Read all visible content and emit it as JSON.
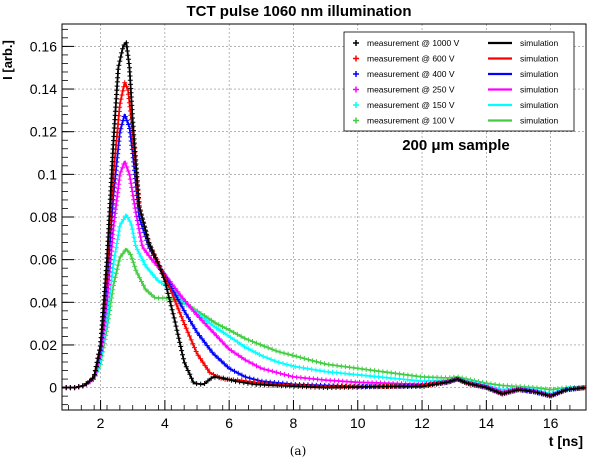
{
  "caption": "(a)",
  "chart_data": {
    "type": "line",
    "title": "TCT pulse 1060 nm illumination",
    "xlabel": "t [ns]",
    "ylabel": "I [arb.]",
    "annotation": "200 μm sample",
    "xlim": [
      0.8,
      17.1
    ],
    "ylim": [
      -0.0105,
      0.1705
    ],
    "x_ticks": [
      2,
      4,
      6,
      8,
      10,
      12,
      14,
      16
    ],
    "y_ticks": [
      0,
      0.02,
      0.04,
      0.06,
      0.08,
      0.1,
      0.12,
      0.14,
      0.16
    ],
    "grid": true,
    "legend_position": "top-right",
    "legend_columns": [
      "measurement",
      "simulation"
    ],
    "series": [
      {
        "name": "measurement @ 1000 V",
        "simulation_label": "simulation",
        "color": "#000000",
        "points": [
          [
            0.8,
            0
          ],
          [
            1.2,
            0
          ],
          [
            1.5,
            0.001
          ],
          [
            1.8,
            0.005
          ],
          [
            2.0,
            0.02
          ],
          [
            2.2,
            0.06
          ],
          [
            2.4,
            0.115
          ],
          [
            2.55,
            0.15
          ],
          [
            2.7,
            0.16
          ],
          [
            2.8,
            0.162
          ],
          [
            2.9,
            0.15
          ],
          [
            3.0,
            0.125
          ],
          [
            3.2,
            0.085
          ],
          [
            3.5,
            0.068
          ],
          [
            3.8,
            0.058
          ],
          [
            4.0,
            0.05
          ],
          [
            4.3,
            0.032
          ],
          [
            4.6,
            0.012
          ],
          [
            4.9,
            0.002
          ],
          [
            5.2,
            0.0015
          ],
          [
            5.5,
            0.005
          ],
          [
            5.8,
            0.0045
          ],
          [
            6.2,
            0.003
          ],
          [
            6.8,
            0.0015
          ],
          [
            7.5,
            0.001
          ],
          [
            9,
            0
          ],
          [
            11,
            0.0005
          ],
          [
            12,
            0.0005
          ],
          [
            12.8,
            0.0025
          ],
          [
            13.1,
            0.004
          ],
          [
            13.4,
            0.002
          ],
          [
            14,
            0
          ],
          [
            14.5,
            -0.003
          ],
          [
            15,
            -0.001
          ],
          [
            15.5,
            -0.002
          ],
          [
            16,
            -0.004
          ],
          [
            16.5,
            -0.001
          ],
          [
            17.1,
            0
          ]
        ]
      },
      {
        "name": "measurement @ 600 V",
        "simulation_label": "simulation",
        "color": "#ff0000",
        "points": [
          [
            0.8,
            0
          ],
          [
            1.2,
            0
          ],
          [
            1.5,
            0.001
          ],
          [
            1.8,
            0.005
          ],
          [
            2.0,
            0.02
          ],
          [
            2.2,
            0.055
          ],
          [
            2.4,
            0.1
          ],
          [
            2.6,
            0.133
          ],
          [
            2.75,
            0.143
          ],
          [
            2.85,
            0.14
          ],
          [
            3.0,
            0.12
          ],
          [
            3.2,
            0.085
          ],
          [
            3.5,
            0.068
          ],
          [
            3.8,
            0.058
          ],
          [
            4.2,
            0.045
          ],
          [
            4.6,
            0.03
          ],
          [
            5.0,
            0.016
          ],
          [
            5.4,
            0.007
          ],
          [
            5.8,
            0.004
          ],
          [
            6.3,
            0.0035
          ],
          [
            7.0,
            0.002
          ],
          [
            8,
            0.001
          ],
          [
            9,
            0.0005
          ],
          [
            11,
            0.0005
          ],
          [
            12,
            0.001
          ],
          [
            12.8,
            0.0025
          ],
          [
            13.1,
            0.004
          ],
          [
            13.4,
            0.002
          ],
          [
            14,
            0
          ],
          [
            14.5,
            -0.003
          ],
          [
            15,
            -0.001
          ],
          [
            15.5,
            -0.002
          ],
          [
            16,
            -0.004
          ],
          [
            16.5,
            -0.001
          ],
          [
            17.1,
            0
          ]
        ]
      },
      {
        "name": "measurement @ 400 V",
        "simulation_label": "simulation",
        "color": "#0000ff",
        "points": [
          [
            0.8,
            0
          ],
          [
            1.2,
            0
          ],
          [
            1.5,
            0.001
          ],
          [
            1.8,
            0.005
          ],
          [
            2.0,
            0.018
          ],
          [
            2.2,
            0.05
          ],
          [
            2.4,
            0.09
          ],
          [
            2.6,
            0.12
          ],
          [
            2.75,
            0.128
          ],
          [
            2.9,
            0.122
          ],
          [
            3.0,
            0.11
          ],
          [
            3.2,
            0.08
          ],
          [
            3.5,
            0.066
          ],
          [
            3.8,
            0.058
          ],
          [
            4.2,
            0.047
          ],
          [
            4.6,
            0.036
          ],
          [
            5.0,
            0.026
          ],
          [
            5.5,
            0.016
          ],
          [
            6.0,
            0.009
          ],
          [
            6.5,
            0.005
          ],
          [
            7.0,
            0.003
          ],
          [
            8,
            0.0015
          ],
          [
            9,
            0.001
          ],
          [
            10,
            0.0005
          ],
          [
            11,
            0.0005
          ],
          [
            12,
            0.001
          ],
          [
            12.8,
            0.0025
          ],
          [
            13.1,
            0.004
          ],
          [
            13.4,
            0.002
          ],
          [
            14,
            0
          ],
          [
            14.5,
            -0.003
          ],
          [
            15,
            -0.001
          ],
          [
            15.5,
            -0.002
          ],
          [
            16,
            -0.004
          ],
          [
            16.5,
            -0.001
          ],
          [
            17.1,
            0
          ]
        ]
      },
      {
        "name": "measurement @ 250 V",
        "simulation_label": "simulation",
        "color": "#ff00ff",
        "points": [
          [
            0.8,
            0
          ],
          [
            1.2,
            0
          ],
          [
            1.5,
            0.001
          ],
          [
            1.8,
            0.004
          ],
          [
            2.0,
            0.015
          ],
          [
            2.2,
            0.04
          ],
          [
            2.4,
            0.075
          ],
          [
            2.6,
            0.1
          ],
          [
            2.75,
            0.106
          ],
          [
            2.9,
            0.1
          ],
          [
            3.1,
            0.082
          ],
          [
            3.3,
            0.066
          ],
          [
            3.6,
            0.06
          ],
          [
            4.0,
            0.053
          ],
          [
            4.5,
            0.043
          ],
          [
            5.0,
            0.034
          ],
          [
            5.5,
            0.026
          ],
          [
            6.0,
            0.018
          ],
          [
            6.5,
            0.013
          ],
          [
            7.0,
            0.009
          ],
          [
            7.5,
            0.007
          ],
          [
            8,
            0.005
          ],
          [
            9,
            0.0035
          ],
          [
            10,
            0.0025
          ],
          [
            11,
            0.002
          ],
          [
            12,
            0.0015
          ],
          [
            12.8,
            0.003
          ],
          [
            13.1,
            0.004
          ],
          [
            13.4,
            0.0025
          ],
          [
            14,
            0.0005
          ],
          [
            14.5,
            -0.002
          ],
          [
            15,
            -0.0005
          ],
          [
            15.5,
            -0.0015
          ],
          [
            16,
            -0.0035
          ],
          [
            16.5,
            -0.001
          ],
          [
            17.1,
            0
          ]
        ]
      },
      {
        "name": "measurement @ 150 V",
        "simulation_label": "simulation",
        "color": "#00ffff",
        "points": [
          [
            0.8,
            0
          ],
          [
            1.2,
            0
          ],
          [
            1.5,
            0.001
          ],
          [
            1.8,
            0.004
          ],
          [
            2.0,
            0.012
          ],
          [
            2.2,
            0.032
          ],
          [
            2.4,
            0.058
          ],
          [
            2.6,
            0.076
          ],
          [
            2.8,
            0.081
          ],
          [
            2.95,
            0.077
          ],
          [
            3.1,
            0.066
          ],
          [
            3.4,
            0.057
          ],
          [
            3.8,
            0.05
          ],
          [
            4.2,
            0.046
          ],
          [
            4.6,
            0.04
          ],
          [
            5.0,
            0.035
          ],
          [
            5.5,
            0.029
          ],
          [
            6.0,
            0.024
          ],
          [
            6.5,
            0.019
          ],
          [
            7.0,
            0.015
          ],
          [
            7.5,
            0.012
          ],
          [
            8,
            0.01
          ],
          [
            9,
            0.0075
          ],
          [
            10,
            0.006
          ],
          [
            11,
            0.0045
          ],
          [
            12,
            0.003
          ],
          [
            12.8,
            0.0035
          ],
          [
            13.1,
            0.004
          ],
          [
            13.4,
            0.003
          ],
          [
            14,
            0.001
          ],
          [
            14.5,
            -0.001
          ],
          [
            15,
            0
          ],
          [
            15.5,
            -0.001
          ],
          [
            16,
            -0.003
          ],
          [
            16.5,
            -0.0005
          ],
          [
            17.1,
            0
          ]
        ]
      },
      {
        "name": "measurement @ 100 V",
        "simulation_label": "simulation",
        "color": "#44cc44",
        "points": [
          [
            0.8,
            0
          ],
          [
            1.2,
            0
          ],
          [
            1.5,
            0.001
          ],
          [
            1.8,
            0.004
          ],
          [
            2.0,
            0.011
          ],
          [
            2.2,
            0.028
          ],
          [
            2.4,
            0.048
          ],
          [
            2.6,
            0.061
          ],
          [
            2.8,
            0.065
          ],
          [
            2.95,
            0.062
          ],
          [
            3.1,
            0.055
          ],
          [
            3.4,
            0.046
          ],
          [
            3.7,
            0.042
          ],
          [
            4.0,
            0.042
          ],
          [
            4.4,
            0.041
          ],
          [
            4.8,
            0.038
          ],
          [
            5.2,
            0.034
          ],
          [
            5.6,
            0.03
          ],
          [
            6.0,
            0.027
          ],
          [
            6.5,
            0.023
          ],
          [
            7.0,
            0.02
          ],
          [
            7.5,
            0.017
          ],
          [
            8,
            0.015
          ],
          [
            8.5,
            0.013
          ],
          [
            9,
            0.011
          ],
          [
            10,
            0.009
          ],
          [
            11,
            0.007
          ],
          [
            12,
            0.005
          ],
          [
            12.8,
            0.0045
          ],
          [
            13.1,
            0.005
          ],
          [
            13.4,
            0.004
          ],
          [
            14,
            0.002
          ],
          [
            14.5,
            0.001
          ],
          [
            15,
            0.0005
          ],
          [
            15.5,
            0
          ],
          [
            16,
            -0.001
          ],
          [
            16.5,
            0
          ],
          [
            17.1,
            0
          ]
        ]
      }
    ]
  }
}
